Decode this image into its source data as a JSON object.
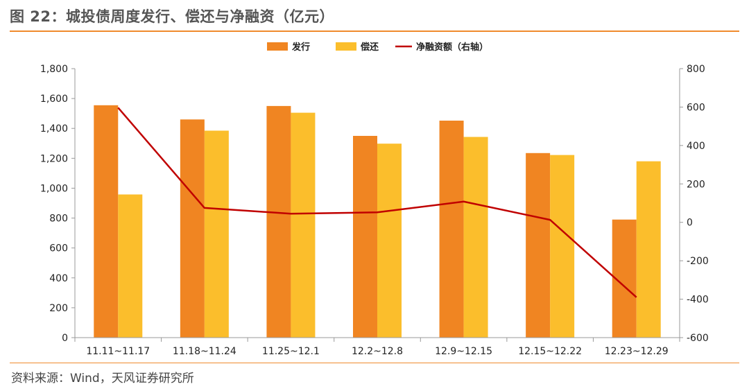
{
  "header": {
    "title": "图 22：城投债周度发行、偿还与净融资（亿元）"
  },
  "footer": {
    "source": "资料来源：Wind，天风证券研究所"
  },
  "colors": {
    "issuance": "#F08522",
    "repayment": "#FBBE2C",
    "net": "#C00000",
    "axis": "#999999",
    "rule": "#F08A2C"
  },
  "chart_data": {
    "type": "bar",
    "categories": [
      "11.11~11.17",
      "11.18~11.24",
      "11.25~12.1",
      "12.2~12.8",
      "12.9~12.15",
      "12.15~12.22",
      "12.23~12.29"
    ],
    "series": [
      {
        "name": "发行",
        "type": "bar",
        "axis": "left",
        "values": [
          1555,
          1460,
          1550,
          1350,
          1452,
          1235,
          790
        ]
      },
      {
        "name": "偿还",
        "type": "bar",
        "axis": "left",
        "values": [
          958,
          1385,
          1505,
          1298,
          1343,
          1222,
          1180
        ]
      },
      {
        "name": "净融资额（右轴）",
        "type": "line",
        "axis": "right",
        "values": [
          597,
          75,
          45,
          52,
          108,
          13,
          -390
        ]
      }
    ],
    "y_left": {
      "min": 0,
      "max": 1800,
      "step": 200,
      "ticks": [
        "0",
        "200",
        "400",
        "600",
        "800",
        "1,000",
        "1,200",
        "1,400",
        "1,600",
        "1,800"
      ]
    },
    "y_right": {
      "min": -600,
      "max": 800,
      "step": 200,
      "ticks": [
        "-600",
        "-400",
        "-200",
        "0",
        "200",
        "400",
        "600",
        "800"
      ]
    },
    "legend_position": "top-center",
    "grid": false
  }
}
